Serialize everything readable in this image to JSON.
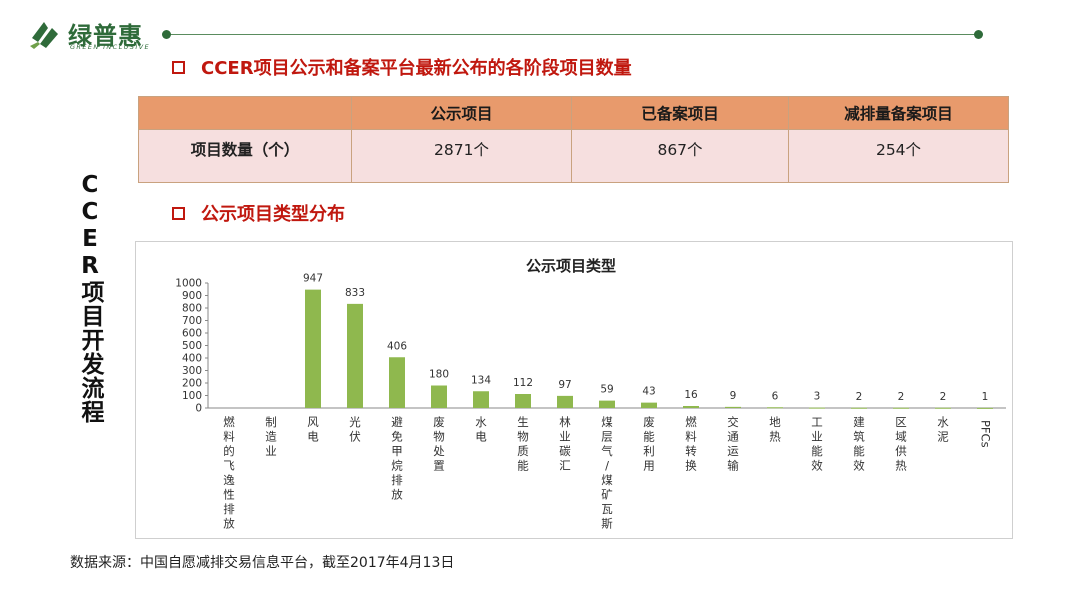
{
  "logo": {
    "name_cn": "绿普惠",
    "name_en": "GREEN INCLUSIVE",
    "color": "#2f6b3a"
  },
  "side_title": "CCER项目开发流程",
  "section1": {
    "title": "CCER项目公示和备案平台最新公布的各阶段项目数量"
  },
  "table": {
    "headers": [
      "",
      "公示项目",
      "已备案项目",
      "减排量备案项目"
    ],
    "row_label": "项目数量（个）",
    "row_values": [
      "2871个",
      "867个",
      "254个"
    ]
  },
  "section2": {
    "title": "公示项目类型分布"
  },
  "chart_data": {
    "type": "bar",
    "title": "公示项目类型",
    "categories": [
      "燃料的飞逸性排放",
      "制造业",
      "风电",
      "光伏",
      "避免甲烷排放",
      "废物处置",
      "水电",
      "生物质能",
      "林业碳汇",
      "煤层气/煤矿瓦斯",
      "废能利用",
      "燃料转换",
      "交通运输",
      "地热",
      "工业能效",
      "建筑能效",
      "区域供热",
      "水泥",
      "PFCs"
    ],
    "values": [
      0,
      0,
      947,
      833,
      406,
      180,
      134,
      112,
      97,
      59,
      43,
      16,
      9,
      6,
      3,
      2,
      2,
      2,
      1
    ],
    "data_labels": [
      "",
      "",
      "947",
      "833",
      "406",
      "180",
      "134",
      "112",
      "97",
      "59",
      "43",
      "16",
      "9",
      "6",
      "3",
      "2",
      "2",
      "2",
      "1"
    ],
    "ylim": [
      0,
      1000
    ],
    "yticks": [
      0,
      100,
      200,
      300,
      400,
      500,
      600,
      700,
      800,
      900,
      1000
    ],
    "bar_color": "#8fb84e",
    "grid": false,
    "legend": "none"
  },
  "source_note": "数据来源：中国自愿减排交易信息平台，截至2017年4月13日",
  "colors": {
    "accent_red": "#c0180f",
    "table_header": "#e89a6c",
    "table_row": "#f6dfdf"
  }
}
